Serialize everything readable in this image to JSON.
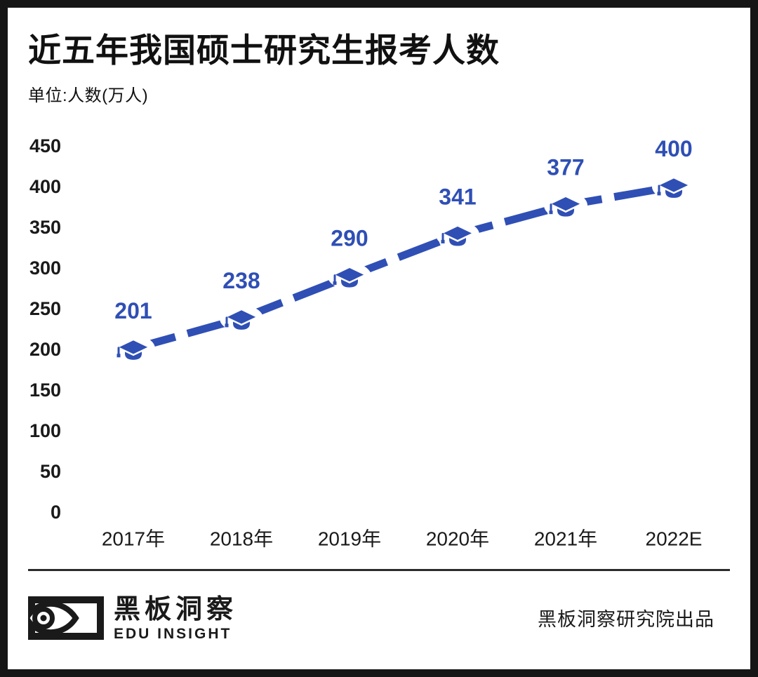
{
  "header": {
    "title": "近五年我国硕士研究生报考人数",
    "unit_label": "单位:人数(万人)"
  },
  "chart_data": {
    "type": "line",
    "title": "近五年我国硕士研究生报考人数",
    "ylabel": "单位:人数(万人)",
    "categories": [
      "2017年",
      "2018年",
      "2019年",
      "2020年",
      "2021年",
      "2022E"
    ],
    "values": [
      201,
      238,
      290,
      341,
      377,
      400
    ],
    "ylim": [
      0,
      450
    ],
    "ytick_step": 50,
    "grid": false,
    "legend": "none",
    "marker": "graduation-cap-icon",
    "line_style": "dashed",
    "line_color": "#2F4FB5",
    "label_color": "#2F4FB5",
    "axis_text_color": "#1a1a1a"
  },
  "footer": {
    "brand_cn": "黑板洞察",
    "brand_en": "EDU INSIGHT",
    "credit": "黑板洞察研究院出品"
  },
  "colors": {
    "accent_blue": "#2F4FB5",
    "frame_black": "#161616",
    "text_black": "#111111"
  }
}
